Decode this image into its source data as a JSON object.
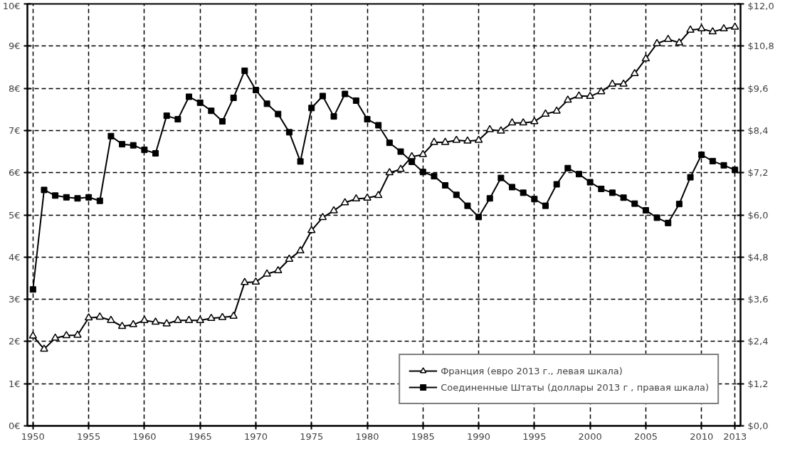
{
  "chart_data": {
    "type": "line",
    "x": [
      1950,
      1951,
      1952,
      1953,
      1954,
      1955,
      1956,
      1957,
      1958,
      1959,
      1960,
      1961,
      1962,
      1963,
      1964,
      1965,
      1966,
      1967,
      1968,
      1969,
      1970,
      1971,
      1972,
      1973,
      1974,
      1975,
      1976,
      1977,
      1978,
      1979,
      1980,
      1981,
      1982,
      1983,
      1984,
      1985,
      1986,
      1987,
      1988,
      1989,
      1990,
      1991,
      1992,
      1993,
      1994,
      1995,
      1996,
      1997,
      1998,
      1999,
      2000,
      2001,
      2002,
      2003,
      2004,
      2005,
      2006,
      2007,
      2008,
      2009,
      2010,
      2011,
      2012,
      2013
    ],
    "series": [
      {
        "name": "Франция (евро 2013 г., левая шкала)",
        "color": "#000000",
        "marker": "triangle",
        "axis": "y",
        "values": [
          2.13,
          1.82,
          2.08,
          2.14,
          2.15,
          2.56,
          2.58,
          2.5,
          2.36,
          2.4,
          2.5,
          2.46,
          2.42,
          2.5,
          2.5,
          2.5,
          2.55,
          2.57,
          2.6,
          3.4,
          3.41,
          3.6,
          3.68,
          3.95,
          4.15,
          4.63,
          4.94,
          5.1,
          5.29,
          5.38,
          5.4,
          5.46,
          6.0,
          6.08,
          6.38,
          6.43,
          6.72,
          6.72,
          6.77,
          6.75,
          6.77,
          7.02,
          6.99,
          7.18,
          7.18,
          7.21,
          7.39,
          7.46,
          7.72,
          7.82,
          7.81,
          7.92,
          8.1,
          8.1,
          8.35,
          8.7,
          9.06,
          9.16,
          9.08,
          9.38,
          9.41,
          9.34,
          9.41,
          9.45
        ]
      },
      {
        "name": "Соединенные Штаты (доллары 2013 г , правая шкала)",
        "color": "#000000",
        "marker": "square",
        "axis": "y2",
        "values": [
          3.88,
          6.71,
          6.55,
          6.5,
          6.47,
          6.5,
          6.4,
          8.24,
          8.01,
          7.98,
          7.85,
          7.75,
          8.82,
          8.72,
          9.36,
          9.19,
          8.96,
          8.66,
          9.33,
          10.1,
          9.55,
          9.16,
          8.87,
          8.35,
          7.52,
          9.04,
          9.38,
          8.8,
          9.44,
          9.25,
          8.72,
          8.55,
          8.05,
          7.8,
          7.51,
          7.22,
          7.1,
          6.84,
          6.57,
          6.26,
          5.94,
          6.47,
          7.05,
          6.79,
          6.63,
          6.45,
          6.26,
          6.87,
          7.33,
          7.16,
          6.93,
          6.74,
          6.63,
          6.49,
          6.32,
          6.13,
          5.92,
          5.77,
          6.31,
          7.07,
          7.71,
          7.53,
          7.41,
          7.28
        ]
      }
    ],
    "xlim": [
      1949.5,
      2013.5
    ],
    "xticks": [
      1950,
      1955,
      1960,
      1965,
      1970,
      1975,
      1980,
      1985,
      1990,
      1995,
      2000,
      2005,
      2010,
      2013
    ],
    "ylim": [
      0,
      10
    ],
    "yticks": [
      {
        "value": 0,
        "label": "0€"
      },
      {
        "value": 1,
        "label": "1€"
      },
      {
        "value": 2,
        "label": "2€"
      },
      {
        "value": 3,
        "label": "3€"
      },
      {
        "value": 4,
        "label": "4€"
      },
      {
        "value": 5,
        "label": "5€"
      },
      {
        "value": 6,
        "label": "6€"
      },
      {
        "value": 7,
        "label": "7€"
      },
      {
        "value": 8,
        "label": "8€"
      },
      {
        "value": 9,
        "label": "9€"
      },
      {
        "value": 10,
        "label": "10€"
      }
    ],
    "y2lim": [
      0,
      12
    ],
    "y2ticks": [
      {
        "value": 0,
        "label": "$0,0"
      },
      {
        "value": 1.2,
        "label": "$1,2"
      },
      {
        "value": 2.4,
        "label": "$2,4"
      },
      {
        "value": 3.6,
        "label": "$3,6"
      },
      {
        "value": 4.8,
        "label": "$4,8"
      },
      {
        "value": 6.0,
        "label": "$6,0"
      },
      {
        "value": 7.2,
        "label": "$7,2"
      },
      {
        "value": 8.4,
        "label": "$8,4"
      },
      {
        "value": 9.6,
        "label": "$9,6"
      },
      {
        "value": 10.8,
        "label": "$10,8"
      },
      {
        "value": 12.0,
        "label": "$12,0"
      }
    ],
    "grid": true,
    "line_style": "solid",
    "legend": "bottom right"
  }
}
